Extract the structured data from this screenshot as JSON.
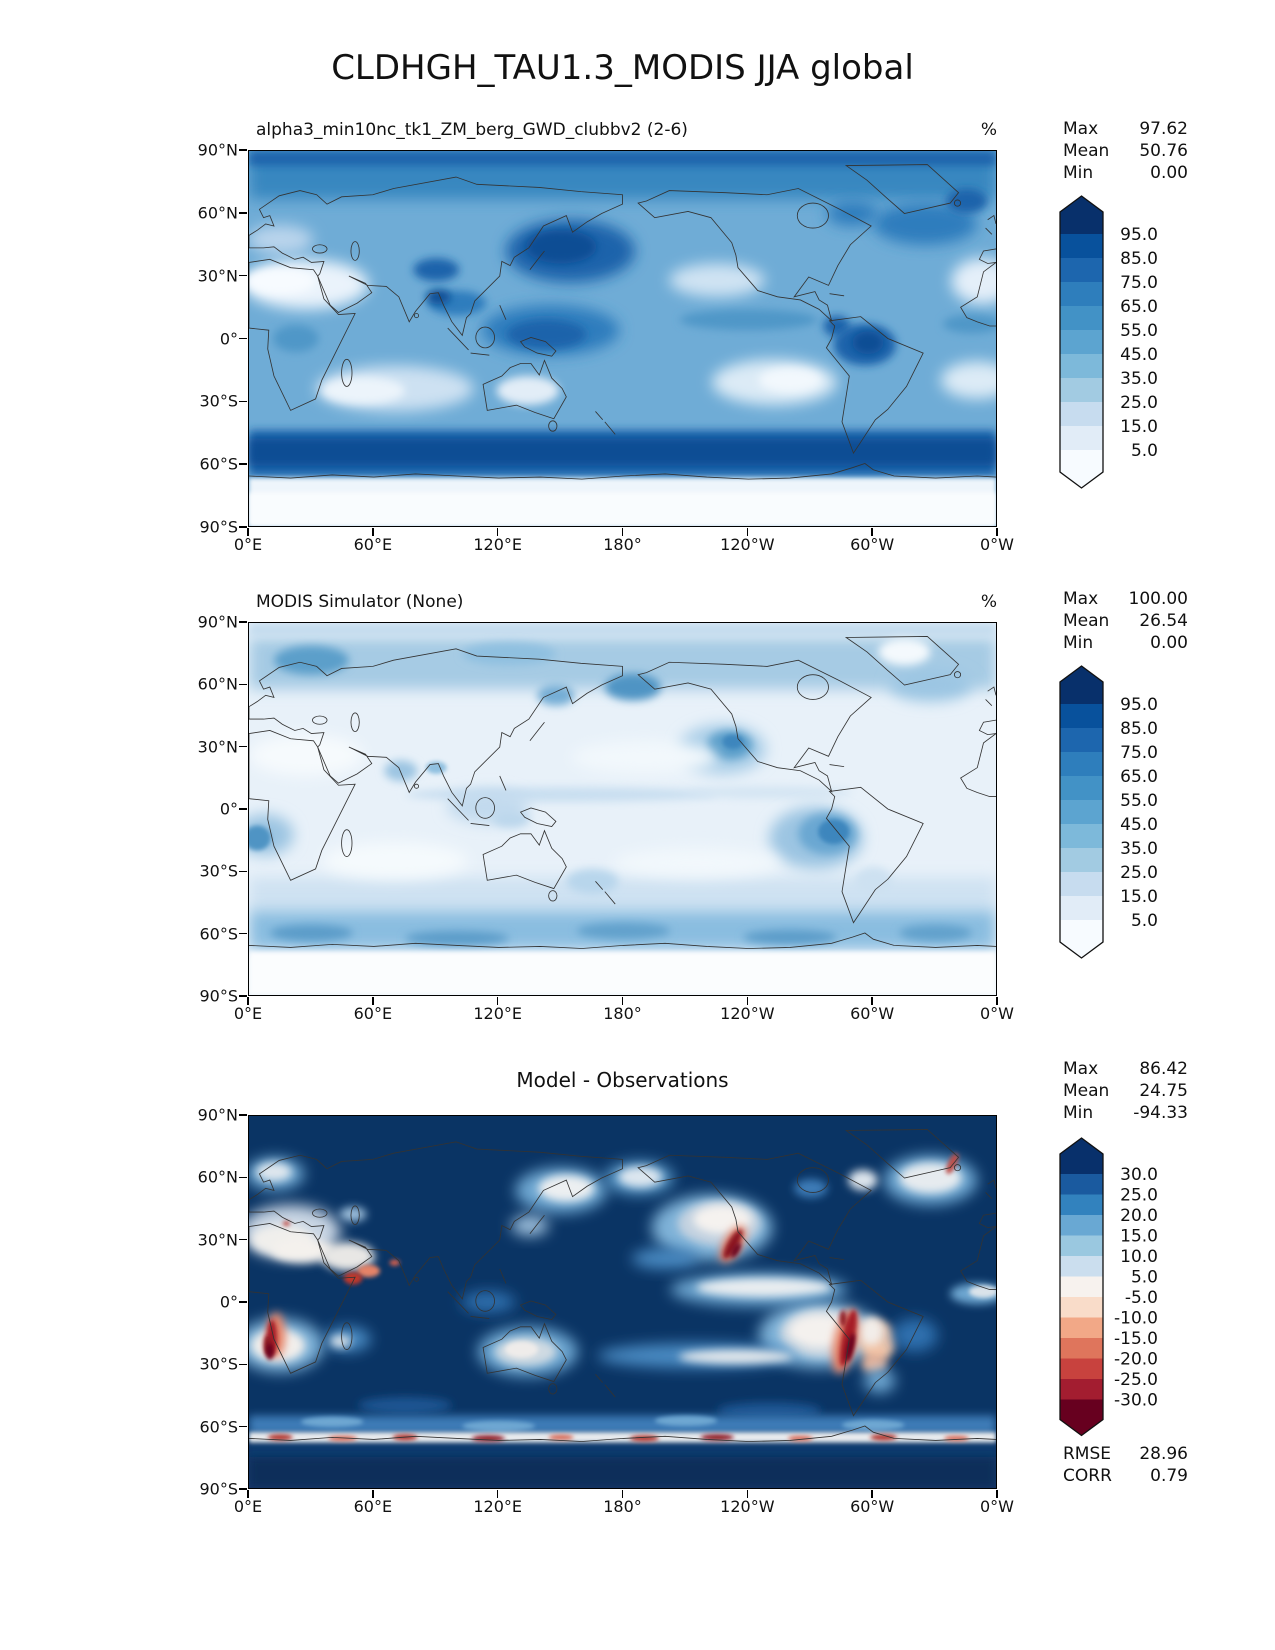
{
  "title": "CLDHGH_TAU1.3_MODIS JJA global",
  "axes": {
    "lat_ticks": [
      "90°N",
      "60°N",
      "30°N",
      "0°",
      "30°S",
      "60°S",
      "90°S"
    ],
    "lon_ticks": [
      "0°E",
      "60°E",
      "120°E",
      "180°",
      "120°W",
      "60°W",
      "0°W"
    ]
  },
  "panels": [
    {
      "key": "model",
      "title": "alpha3_min10nc_tk1_ZM_berg_GWD_clubbv2 (2-6)",
      "units": "%",
      "title_align": "left",
      "stats": [
        [
          "Max",
          "97.62"
        ],
        [
          "Mean",
          "50.76"
        ],
        [
          "Min",
          "0.00"
        ]
      ],
      "colorbar": {
        "labels": [
          "95.0",
          "85.0",
          "75.0",
          "65.0",
          "55.0",
          "45.0",
          "35.0",
          "25.0",
          "15.0",
          "5.0"
        ],
        "colors": [
          "#08306b",
          "#08519c",
          "#1d66ae",
          "#2e7ebc",
          "#4292c6",
          "#5ca4d0",
          "#7db9da",
          "#a2cbe2",
          "#c7dcef",
          "#e1ecf7",
          "#f7fbff"
        ]
      }
    },
    {
      "key": "obs",
      "title": "MODIS Simulator (None)",
      "units": "%",
      "title_align": "left",
      "stats": [
        [
          "Max",
          "100.00"
        ],
        [
          "Mean",
          "26.54"
        ],
        [
          "Min",
          "0.00"
        ]
      ],
      "colorbar": {
        "labels": [
          "95.0",
          "85.0",
          "75.0",
          "65.0",
          "55.0",
          "45.0",
          "35.0",
          "25.0",
          "15.0",
          "5.0"
        ],
        "colors": [
          "#08306b",
          "#08519c",
          "#1d66ae",
          "#2e7ebc",
          "#4292c6",
          "#5ca4d0",
          "#7db9da",
          "#a2cbe2",
          "#c7dcef",
          "#e1ecf7",
          "#f7fbff"
        ]
      }
    },
    {
      "key": "diff",
      "title": "Model - Observations",
      "title_align": "center",
      "stats": [
        [
          "Max",
          "86.42"
        ],
        [
          "Mean",
          "24.75"
        ],
        [
          "Min",
          "-94.33"
        ]
      ],
      "extra_stats": [
        [
          "RMSE",
          "28.96"
        ],
        [
          "CORR",
          "0.79"
        ]
      ],
      "colorbar": {
        "labels": [
          "30.0",
          "25.0",
          "20.0",
          "15.0",
          "10.0",
          "5.0",
          "-5.0",
          "-10.0",
          "-15.0",
          "-20.0",
          "-25.0",
          "-30.0"
        ],
        "colors": [
          "#08306b",
          "#1a5a9f",
          "#3282be",
          "#69a8d3",
          "#9ac8e0",
          "#cbdeee",
          "#f7f2ee",
          "#f9dcc9",
          "#f2a887",
          "#df755c",
          "#c8423e",
          "#a31d30",
          "#67001f"
        ]
      }
    }
  ],
  "chart_data": [
    {
      "type": "heatmap",
      "map_projection": "equirectangular global (0E-360E)",
      "title": "alpha3_min10nc_tk1_ZM_berg_GWD_clubbv2 (2-6)",
      "suptitle": "CLDHGH_TAU1.3_MODIS JJA global",
      "units": "%",
      "stats": {
        "max": 97.62,
        "mean": 50.76,
        "min": 0.0
      },
      "contour_levels": [
        5,
        15,
        25,
        35,
        45,
        55,
        65,
        75,
        85,
        95
      ],
      "colormap": "Blues (dark = high cloud fraction), extend both",
      "lat_ticks": [
        "90°N",
        "60°N",
        "30°N",
        "0°",
        "30°S",
        "60°S",
        "90°S"
      ],
      "lon_ticks": [
        "0°E",
        "60°E",
        "120°E",
        "180°",
        "120°W",
        "60°W",
        "0°W"
      ]
    },
    {
      "type": "heatmap",
      "map_projection": "equirectangular global (0E-360E)",
      "title": "MODIS Simulator (None)",
      "units": "%",
      "stats": {
        "max": 100.0,
        "mean": 26.54,
        "min": 0.0
      },
      "contour_levels": [
        5,
        15,
        25,
        35,
        45,
        55,
        65,
        75,
        85,
        95
      ],
      "colormap": "Blues (dark = high cloud fraction), extend both",
      "lat_ticks": [
        "90°N",
        "60°N",
        "30°N",
        "0°",
        "30°S",
        "60°S",
        "90°S"
      ],
      "lon_ticks": [
        "0°E",
        "60°E",
        "120°E",
        "180°",
        "120°W",
        "60°W",
        "0°W"
      ]
    },
    {
      "type": "heatmap",
      "map_projection": "equirectangular global (0E-360E)",
      "title": "Model - Observations",
      "units": "%",
      "stats": {
        "max": 86.42,
        "mean": 24.75,
        "min": -94.33,
        "rmse": 28.96,
        "corr": 0.79
      },
      "contour_levels": [
        -30,
        -25,
        -20,
        -15,
        -10,
        -5,
        5,
        10,
        15,
        20,
        25,
        30
      ],
      "colormap": "RdBu reversed (blue = positive model bias, red = negative), extend both",
      "lat_ticks": [
        "90°N",
        "60°N",
        "30°N",
        "0°",
        "30°S",
        "60°S",
        "90°S"
      ],
      "lon_ticks": [
        "0°E",
        "60°E",
        "120°E",
        "180°",
        "120°W",
        "60°W",
        "0°W"
      ]
    }
  ]
}
